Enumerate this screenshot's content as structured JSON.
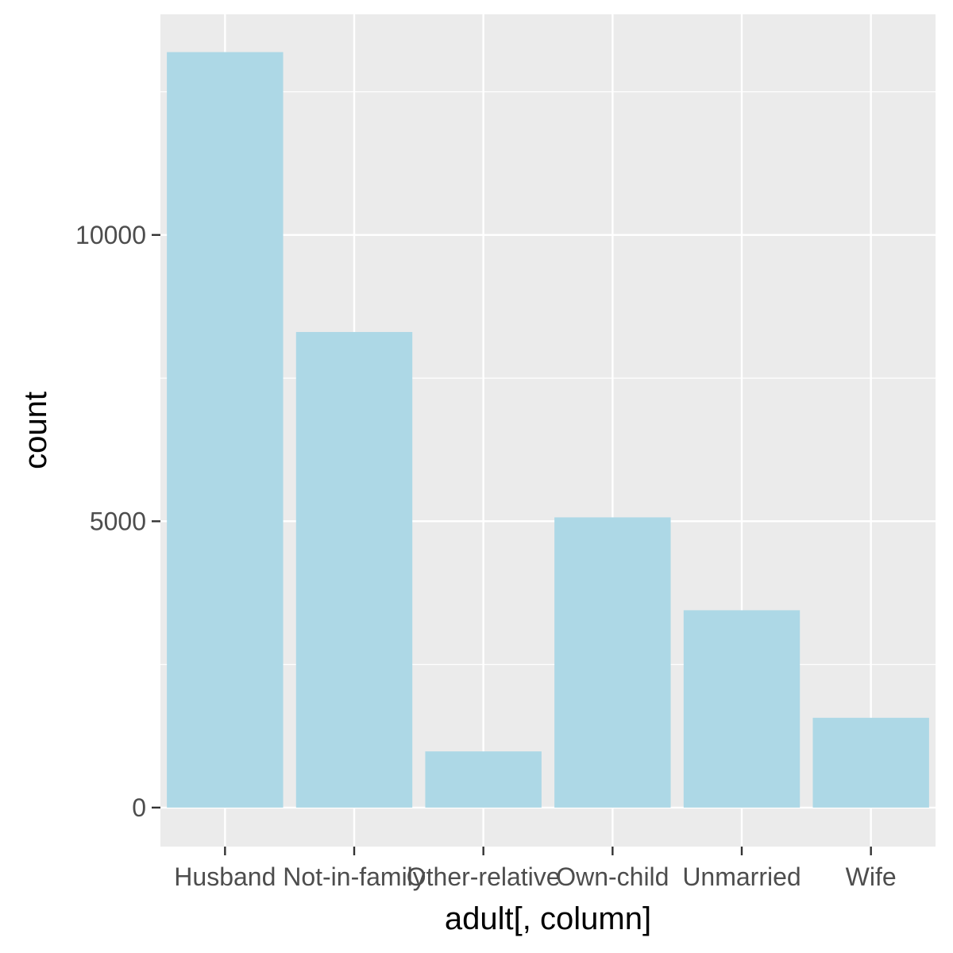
{
  "chart_data": {
    "type": "bar",
    "title": "",
    "xlabel": "adult[, column]",
    "ylabel": "count",
    "categories": [
      "Husband",
      "Not-in-family",
      "Other-relative",
      "Own-child",
      "Unmarried",
      "Wife"
    ],
    "values": [
      13193,
      8305,
      981,
      5068,
      3446,
      1568
    ],
    "ylim": [
      -681,
      13853
    ],
    "yticks": [
      0,
      5000,
      10000
    ],
    "ytick_labels": [
      "0",
      "5000",
      "10000"
    ],
    "grid": true,
    "legend": "none",
    "colors": {
      "bar": "#ADD8E6",
      "panel": "#EBEBEB",
      "grid": "#FFFFFF",
      "tick_text": "#4D4D4D",
      "axis_title": "#000000"
    }
  }
}
